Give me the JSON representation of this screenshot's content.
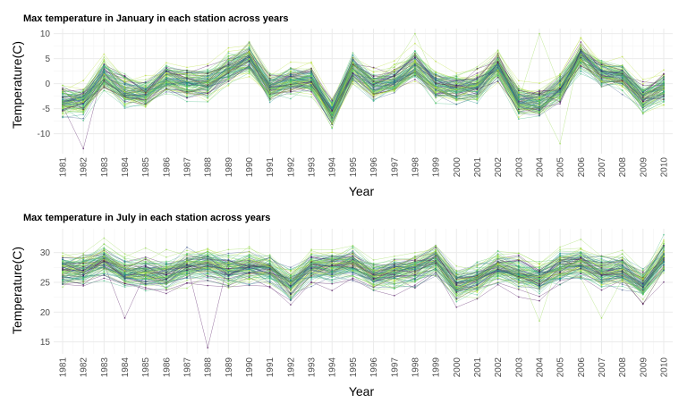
{
  "chart_data": [
    {
      "type": "line",
      "title": "Max temperature in January in each station across years",
      "xlabel": "Year",
      "ylabel": "Temperature(C)",
      "x": [
        1981,
        1982,
        1983,
        1984,
        1985,
        1986,
        1987,
        1988,
        1989,
        1990,
        1991,
        1992,
        1993,
        1994,
        1995,
        1996,
        1997,
        1998,
        1999,
        2000,
        2001,
        2002,
        2003,
        2004,
        2005,
        2006,
        2007,
        2008,
        2009,
        2010
      ],
      "ylim": [
        -14,
        11
      ],
      "yticks": [
        -10,
        -5,
        0,
        5,
        10
      ],
      "grid": true,
      "legend": "none",
      "palette": [
        "#440154",
        "#3b528b",
        "#21918c",
        "#35b779",
        "#5ec962",
        "#90d743",
        "#b5de2b"
      ],
      "series_count": 100,
      "mean": [
        -3.5,
        -3.5,
        1.5,
        -1.5,
        -2.0,
        1.0,
        0.0,
        0.0,
        3.0,
        5.0,
        -1.0,
        0.5,
        0.5,
        -6.0,
        3.0,
        -0.5,
        0.5,
        3.5,
        -0.5,
        -1.0,
        -0.5,
        3.5,
        -3.5,
        -4.0,
        -1.0,
        5.5,
        2.0,
        1.5,
        -3.0,
        -1.0
      ],
      "spread": 2.3,
      "outliers": [
        {
          "year": 1982,
          "value": -13
        },
        {
          "year": 2004,
          "value": 10
        },
        {
          "year": 2005,
          "value": -12
        },
        {
          "year": 1998,
          "value": 10
        }
      ]
    },
    {
      "type": "line",
      "title": "Max temperature in July in each station across years",
      "xlabel": "Year",
      "ylabel": "Temperature(C)",
      "x": [
        1981,
        1982,
        1983,
        1984,
        1985,
        1986,
        1987,
        1988,
        1989,
        1990,
        1991,
        1992,
        1993,
        1994,
        1995,
        1996,
        1997,
        1998,
        1999,
        2000,
        2001,
        2002,
        2003,
        2004,
        2005,
        2006,
        2007,
        2008,
        2009,
        2010
      ],
      "ylim": [
        13,
        34
      ],
      "yticks": [
        15,
        20,
        25,
        30
      ],
      "grid": true,
      "legend": "none",
      "palette": [
        "#440154",
        "#3b528b",
        "#21918c",
        "#35b779",
        "#5ec962",
        "#90d743",
        "#b5de2b"
      ],
      "series_count": 100,
      "mean": [
        27.0,
        27.0,
        28.5,
        26.5,
        26.5,
        26.0,
        27.5,
        28.0,
        27.0,
        27.5,
        27.0,
        24.5,
        27.5,
        27.5,
        28.0,
        26.0,
        26.5,
        27.0,
        28.5,
        24.5,
        25.5,
        27.5,
        26.5,
        25.5,
        27.5,
        28.0,
        26.5,
        27.0,
        24.5,
        29.0
      ],
      "spread": 1.8,
      "outliers": [
        {
          "year": 1988,
          "value": 14
        },
        {
          "year": 2004,
          "value": 18.5
        },
        {
          "year": 1984,
          "value": 19
        },
        {
          "year": 2007,
          "value": 19
        },
        {
          "year": 2010,
          "value": 33
        }
      ]
    }
  ]
}
